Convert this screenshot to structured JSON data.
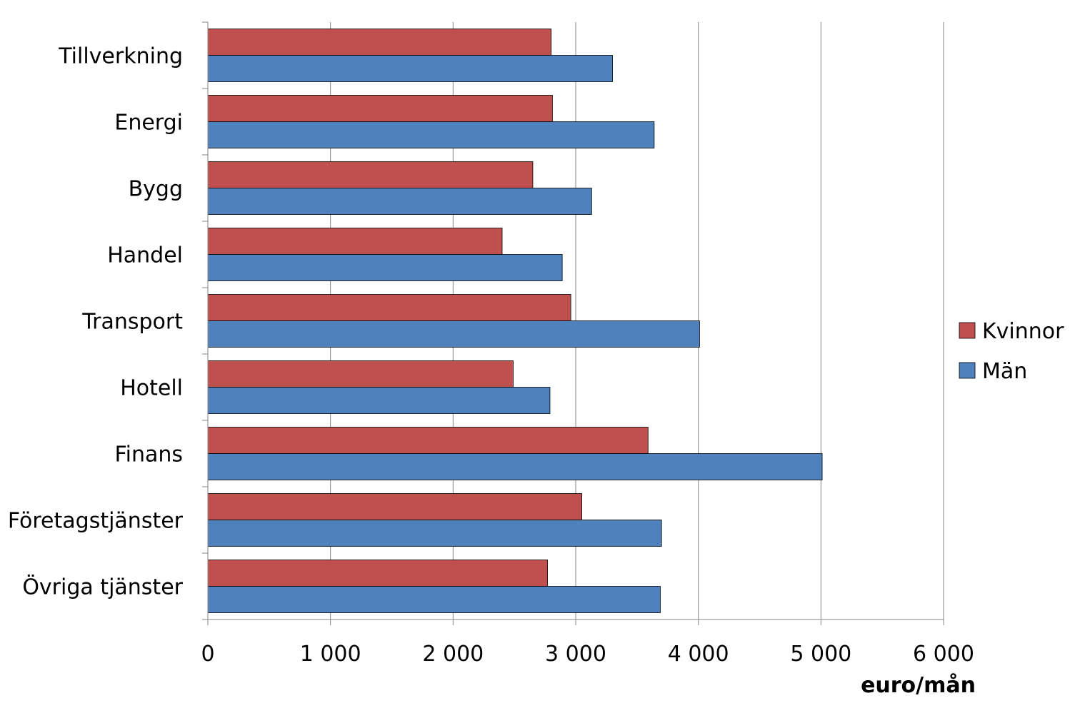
{
  "chart_data": {
    "type": "bar",
    "orientation": "horizontal",
    "categories": [
      "Tillverkning",
      "Energi",
      "Bygg",
      "Handel",
      "Transport",
      "Hotell",
      "Finans",
      "Företagstjänster",
      "Övriga tjänster"
    ],
    "series": [
      {
        "name": "Kvinnor",
        "color": "#c0504d",
        "values": [
          2800,
          2810,
          2650,
          2400,
          2960,
          2490,
          3590,
          3050,
          2770
        ]
      },
      {
        "name": "Män",
        "color": "#4f81bd",
        "values": [
          3300,
          3640,
          3130,
          2890,
          4010,
          2790,
          5010,
          3700,
          3690
        ]
      }
    ],
    "xlim": [
      0,
      6000
    ],
    "xticks": [
      0,
      1000,
      2000,
      3000,
      4000,
      5000,
      6000
    ],
    "xtick_labels": [
      "0",
      "1 000",
      "2 000",
      "3 000",
      "4 000",
      "5 000",
      "6 000"
    ],
    "xlabel": "euro/mån",
    "grid": "vertical",
    "legend": "right"
  }
}
